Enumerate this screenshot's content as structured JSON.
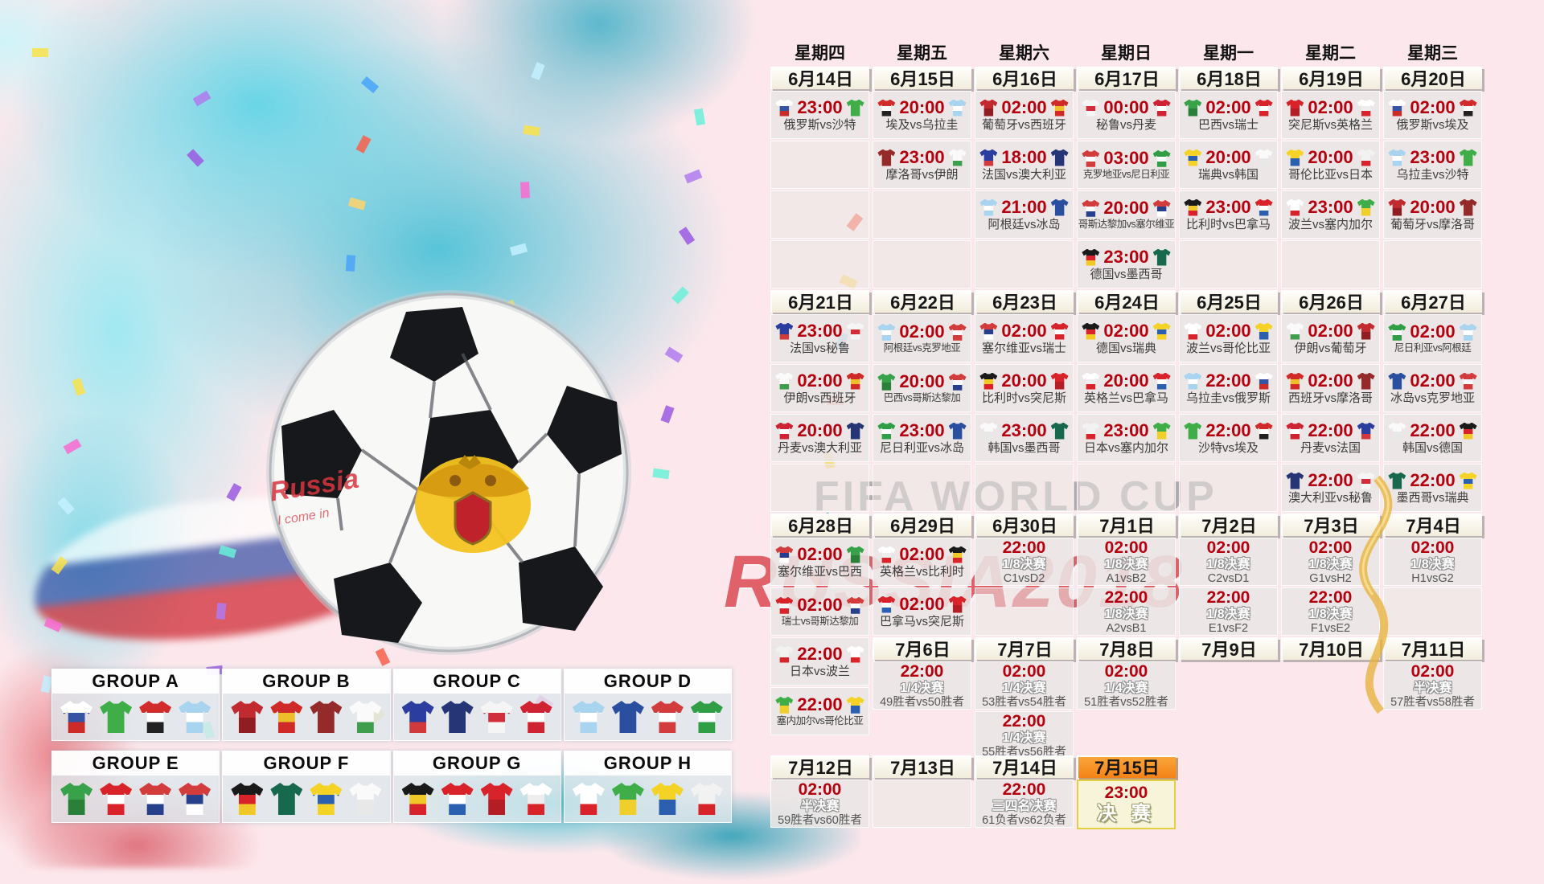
{
  "watermarks": {
    "fifa": "FIFA WORLD CUP",
    "russia": "RUSSIA2018",
    "graffiti1": "Russia",
    "graffiti2": "I come in"
  },
  "colors": {
    "background": "#fce8ec",
    "time_red": "#b5000f",
    "splash_teal": "#3abed5",
    "highlight_orange": "#f48216",
    "watermark_gray": "#aaa4a8",
    "watermark_red": "#d8353f"
  },
  "columns": [
    {
      "weekday": "星期四",
      "cells": [
        {
          "t": "date",
          "label": "6月14日"
        },
        {
          "t": "match",
          "time": "23:00",
          "home": "俄罗斯",
          "away": "沙特",
          "label": "俄罗斯vs沙特"
        },
        {
          "t": "empty"
        },
        {
          "t": "empty"
        },
        {
          "t": "empty"
        },
        {
          "t": "date",
          "label": "6月21日"
        },
        {
          "t": "match",
          "time": "23:00",
          "home": "法国",
          "away": "秘鲁",
          "label": "法国vs秘鲁"
        },
        {
          "t": "match",
          "time": "02:00",
          "home": "伊朗",
          "away": "西班牙",
          "label": "伊朗vs西班牙"
        },
        {
          "t": "match",
          "time": "20:00",
          "home": "丹麦",
          "away": "澳大利亚",
          "label": "丹麦vs澳大利亚"
        },
        {
          "t": "empty"
        },
        {
          "t": "date",
          "label": "6月28日"
        },
        {
          "t": "match",
          "time": "02:00",
          "home": "塞尔维亚",
          "away": "巴西",
          "label": "塞尔维亚vs巴西"
        },
        {
          "t": "match",
          "time": "02:00",
          "home": "瑞士",
          "away": "哥斯达黎加",
          "label": "瑞士vs哥斯达黎加"
        },
        {
          "t": "match",
          "time": "22:00",
          "home": "日本",
          "away": "波兰",
          "label": "日本vs波兰"
        },
        {
          "t": "match",
          "time": "22:00",
          "home": "塞内加尔",
          "away": "哥伦比亚",
          "label": "塞内加尔vs哥伦比亚"
        }
      ],
      "bottom": [
        {
          "t": "date",
          "label": "7月12日"
        },
        {
          "t": "ko",
          "time": "02:00",
          "stage": "半决赛",
          "detail": "59胜者vs60胜者"
        }
      ]
    },
    {
      "weekday": "星期五",
      "cells": [
        {
          "t": "date",
          "label": "6月15日"
        },
        {
          "t": "match",
          "time": "20:00",
          "home": "埃及",
          "away": "乌拉圭",
          "label": "埃及vs乌拉圭"
        },
        {
          "t": "match",
          "time": "23:00",
          "home": "摩洛哥",
          "away": "伊朗",
          "label": "摩洛哥vs伊朗"
        },
        {
          "t": "empty"
        },
        {
          "t": "empty"
        },
        {
          "t": "date",
          "label": "6月22日"
        },
        {
          "t": "match",
          "time": "02:00",
          "home": "阿根廷",
          "away": "克罗地亚",
          "label": "阿根廷vs克罗地亚"
        },
        {
          "t": "match",
          "time": "20:00",
          "home": "巴西",
          "away": "哥斯达黎加",
          "label": "巴西vs哥斯达黎加"
        },
        {
          "t": "match",
          "time": "23:00",
          "home": "尼日利亚",
          "away": "冰岛",
          "label": "尼日利亚vs冰岛"
        },
        {
          "t": "empty"
        },
        {
          "t": "date",
          "label": "6月29日"
        },
        {
          "t": "match",
          "time": "02:00",
          "home": "英格兰",
          "away": "比利时",
          "label": "英格兰vs比利时"
        },
        {
          "t": "match",
          "time": "02:00",
          "home": "巴拿马",
          "away": "突尼斯",
          "label": "巴拿马vs突尼斯"
        },
        {
          "t": "date",
          "label": "7月6日"
        },
        {
          "t": "ko",
          "time": "22:00",
          "stage": "1/4决赛",
          "detail": "49胜者vs50胜者"
        }
      ],
      "bottom": [
        {
          "t": "date",
          "label": "7月13日"
        },
        {
          "t": "empty"
        }
      ]
    },
    {
      "weekday": "星期六",
      "cells": [
        {
          "t": "date",
          "label": "6月16日"
        },
        {
          "t": "match",
          "time": "02:00",
          "home": "葡萄牙",
          "away": "西班牙",
          "label": "葡萄牙vs西班牙"
        },
        {
          "t": "match",
          "time": "18:00",
          "home": "法国",
          "away": "澳大利亚",
          "label": "法国vs澳大利亚"
        },
        {
          "t": "match",
          "time": "21:00",
          "home": "阿根廷",
          "away": "冰岛",
          "label": "阿根廷vs冰岛"
        },
        {
          "t": "empty"
        },
        {
          "t": "date",
          "label": "6月23日"
        },
        {
          "t": "match",
          "time": "02:00",
          "home": "塞尔维亚",
          "away": "瑞士",
          "label": "塞尔维亚vs瑞士"
        },
        {
          "t": "match",
          "time": "20:00",
          "home": "比利时",
          "away": "突尼斯",
          "label": "比利时vs突尼斯"
        },
        {
          "t": "match",
          "time": "23:00",
          "home": "韩国",
          "away": "墨西哥",
          "label": "韩国vs墨西哥"
        },
        {
          "t": "empty"
        },
        {
          "t": "date",
          "label": "6月30日"
        },
        {
          "t": "ko",
          "time": "22:00",
          "stage": "1/8决赛",
          "detail": "C1vsD2"
        },
        {
          "t": "empty"
        },
        {
          "t": "date",
          "label": "7月7日"
        },
        {
          "t": "ko",
          "time": "02:00",
          "stage": "1/4决赛",
          "detail": "53胜者vs54胜者"
        },
        {
          "t": "ko",
          "time": "22:00",
          "stage": "1/4决赛",
          "detail": "55胜者vs56胜者"
        }
      ],
      "bottom": [
        {
          "t": "date",
          "label": "7月14日"
        },
        {
          "t": "ko",
          "time": "22:00",
          "stage": "三四名决赛",
          "detail": "61负者vs62负者"
        }
      ]
    },
    {
      "weekday": "星期日",
      "cells": [
        {
          "t": "date",
          "label": "6月17日"
        },
        {
          "t": "match",
          "time": "00:00",
          "home": "秘鲁",
          "away": "丹麦",
          "label": "秘鲁vs丹麦"
        },
        {
          "t": "match",
          "time": "03:00",
          "home": "克罗地亚",
          "away": "尼日利亚",
          "label": "克罗地亚vs尼日利亚"
        },
        {
          "t": "match",
          "time": "20:00",
          "home": "哥斯达黎加",
          "away": "塞尔维亚",
          "label": "哥斯达黎加vs塞尔维亚"
        },
        {
          "t": "match",
          "time": "23:00",
          "home": "德国",
          "away": "墨西哥",
          "label": "德国vs墨西哥"
        },
        {
          "t": "date",
          "label": "6月24日"
        },
        {
          "t": "match",
          "time": "02:00",
          "home": "德国",
          "away": "瑞典",
          "label": "德国vs瑞典"
        },
        {
          "t": "match",
          "time": "20:00",
          "home": "英格兰",
          "away": "巴拿马",
          "label": "英格兰vs巴拿马"
        },
        {
          "t": "match",
          "time": "23:00",
          "home": "日本",
          "away": "塞内加尔",
          "label": "日本vs塞内加尔"
        },
        {
          "t": "empty"
        },
        {
          "t": "date",
          "label": "7月1日"
        },
        {
          "t": "ko",
          "time": "02:00",
          "stage": "1/8决赛",
          "detail": "A1vsB2"
        },
        {
          "t": "ko",
          "time": "22:00",
          "stage": "1/8决赛",
          "detail": "A2vsB1"
        },
        {
          "t": "date",
          "label": "7月8日"
        },
        {
          "t": "ko",
          "time": "02:00",
          "stage": "1/4决赛",
          "detail": "51胜者vs52胜者"
        }
      ],
      "bottom": [
        {
          "t": "date",
          "label": "7月15日",
          "highlight": true
        },
        {
          "t": "final",
          "time": "23:00",
          "label": "决 赛"
        }
      ]
    },
    {
      "weekday": "星期一",
      "cells": [
        {
          "t": "date",
          "label": "6月18日"
        },
        {
          "t": "match",
          "time": "02:00",
          "home": "巴西",
          "away": "瑞士",
          "label": "巴西vs瑞士"
        },
        {
          "t": "match",
          "time": "20:00",
          "home": "瑞典",
          "away": "韩国",
          "label": "瑞典vs韩国"
        },
        {
          "t": "match",
          "time": "23:00",
          "home": "比利时",
          "away": "巴拿马",
          "label": "比利时vs巴拿马"
        },
        {
          "t": "empty"
        },
        {
          "t": "date",
          "label": "6月25日"
        },
        {
          "t": "match",
          "time": "02:00",
          "home": "波兰",
          "away": "哥伦比亚",
          "label": "波兰vs哥伦比亚"
        },
        {
          "t": "match",
          "time": "22:00",
          "home": "乌拉圭",
          "away": "俄罗斯",
          "label": "乌拉圭vs俄罗斯"
        },
        {
          "t": "match",
          "time": "22:00",
          "home": "沙特",
          "away": "埃及",
          "label": "沙特vs埃及"
        },
        {
          "t": "empty"
        },
        {
          "t": "date",
          "label": "7月2日"
        },
        {
          "t": "ko",
          "time": "02:00",
          "stage": "1/8决赛",
          "detail": "C2vsD1"
        },
        {
          "t": "ko",
          "time": "22:00",
          "stage": "1/8决赛",
          "detail": "E1vsF2"
        },
        {
          "t": "date",
          "label": "7月9日"
        }
      ]
    },
    {
      "weekday": "星期二",
      "cells": [
        {
          "t": "date",
          "label": "6月19日"
        },
        {
          "t": "match",
          "time": "02:00",
          "home": "突尼斯",
          "away": "英格兰",
          "label": "突尼斯vs英格兰"
        },
        {
          "t": "match",
          "time": "20:00",
          "home": "哥伦比亚",
          "away": "日本",
          "label": "哥伦比亚vs日本"
        },
        {
          "t": "match",
          "time": "23:00",
          "home": "波兰",
          "away": "塞内加尔",
          "label": "波兰vs塞内加尔"
        },
        {
          "t": "empty"
        },
        {
          "t": "date",
          "label": "6月26日"
        },
        {
          "t": "match",
          "time": "02:00",
          "home": "伊朗",
          "away": "葡萄牙",
          "label": "伊朗vs葡萄牙"
        },
        {
          "t": "match",
          "time": "02:00",
          "home": "西班牙",
          "away": "摩洛哥",
          "label": "西班牙vs摩洛哥"
        },
        {
          "t": "match",
          "time": "22:00",
          "home": "丹麦",
          "away": "法国",
          "label": "丹麦vs法国"
        },
        {
          "t": "match",
          "time": "22:00",
          "home": "澳大利亚",
          "away": "秘鲁",
          "label": "澳大利亚vs秘鲁"
        },
        {
          "t": "date",
          "label": "7月3日"
        },
        {
          "t": "ko",
          "time": "02:00",
          "stage": "1/8决赛",
          "detail": "G1vsH2"
        },
        {
          "t": "ko",
          "time": "22:00",
          "stage": "1/8决赛",
          "detail": "F1vsE2"
        },
        {
          "t": "date",
          "label": "7月10日"
        }
      ]
    },
    {
      "weekday": "星期三",
      "cells": [
        {
          "t": "date",
          "label": "6月20日"
        },
        {
          "t": "match",
          "time": "02:00",
          "home": "俄罗斯",
          "away": "埃及",
          "label": "俄罗斯vs埃及"
        },
        {
          "t": "match",
          "time": "23:00",
          "home": "乌拉圭",
          "away": "沙特",
          "label": "乌拉圭vs沙特"
        },
        {
          "t": "match",
          "time": "20:00",
          "home": "葡萄牙",
          "away": "摩洛哥",
          "label": "葡萄牙vs摩洛哥"
        },
        {
          "t": "empty"
        },
        {
          "t": "date",
          "label": "6月27日"
        },
        {
          "t": "match",
          "time": "02:00",
          "home": "尼日利亚",
          "away": "阿根廷",
          "label": "尼日利亚vs阿根廷"
        },
        {
          "t": "match",
          "time": "02:00",
          "home": "冰岛",
          "away": "克罗地亚",
          "label": "冰岛vs克罗地亚"
        },
        {
          "t": "match",
          "time": "22:00",
          "home": "韩国",
          "away": "德国",
          "label": "韩国vs德国"
        },
        {
          "t": "match",
          "time": "22:00",
          "home": "墨西哥",
          "away": "瑞典",
          "label": "墨西哥vs瑞典"
        },
        {
          "t": "date",
          "label": "7月4日"
        },
        {
          "t": "ko",
          "time": "02:00",
          "stage": "1/8决赛",
          "detail": "H1vsG2"
        },
        {
          "t": "empty"
        },
        {
          "t": "date",
          "label": "7月11日"
        },
        {
          "t": "ko",
          "time": "02:00",
          "stage": "半决赛",
          "detail": "57胜者vs58胜者"
        }
      ]
    }
  ],
  "groups": [
    {
      "name": "GROUP A",
      "teams": [
        "俄罗斯",
        "沙特",
        "埃及",
        "乌拉圭"
      ]
    },
    {
      "name": "GROUP B",
      "teams": [
        "葡萄牙",
        "西班牙",
        "摩洛哥",
        "伊朗"
      ]
    },
    {
      "name": "GROUP C",
      "teams": [
        "法国",
        "澳大利亚",
        "秘鲁",
        "丹麦"
      ]
    },
    {
      "name": "GROUP D",
      "teams": [
        "阿根廷",
        "冰岛",
        "克罗地亚",
        "尼日利亚"
      ]
    },
    {
      "name": "GROUP E",
      "teams": [
        "巴西",
        "瑞士",
        "哥斯达黎加",
        "塞尔维亚"
      ]
    },
    {
      "name": "GROUP F",
      "teams": [
        "德国",
        "墨西哥",
        "瑞典",
        "韩国"
      ]
    },
    {
      "name": "GROUP G",
      "teams": [
        "比利时",
        "巴拿马",
        "突尼斯",
        "英格兰"
      ]
    },
    {
      "name": "GROUP H",
      "teams": [
        "波兰",
        "塞内加尔",
        "哥伦比亚",
        "日本"
      ]
    }
  ],
  "team_colors": {
    "俄罗斯": [
      "#ffffff",
      "#3653a4",
      "#cc2b28"
    ],
    "沙特": [
      "#3fae49"
    ],
    "埃及": [
      "#d22b2b",
      "#ffffff",
      "#222222"
    ],
    "乌拉圭": [
      "#a8d4f0",
      "#ffffff",
      "#a8d4f0"
    ],
    "葡萄牙": [
      "#c12a2e",
      "#8f1d22"
    ],
    "西班牙": [
      "#cf2a27",
      "#eebd2a",
      "#cf2a27"
    ],
    "摩洛哥": [
      "#952a2a"
    ],
    "伊朗": [
      "#fafafa",
      "#fafafa",
      "#3e9e4c"
    ],
    "法国": [
      "#2b3d9e",
      "#2b3d9e",
      "#d03a3a"
    ],
    "澳大利亚": [
      "#253575"
    ],
    "秘鲁": [
      "#f5f5f5",
      "#cf2e3a",
      "#f5f5f5"
    ],
    "丹麦": [
      "#cf2333",
      "#ffffff",
      "#cf2333"
    ],
    "阿根廷": [
      "#a8d4f0",
      "#ffffff",
      "#a8d4f0"
    ],
    "冰岛": [
      "#2b4fa0"
    ],
    "克罗地亚": [
      "#d23c3c",
      "#ffffff",
      "#d23c3c"
    ],
    "尼日利亚": [
      "#2f9e44",
      "#ffffff",
      "#2f9e44"
    ],
    "巴西": [
      "#37a24a",
      "#2a8039"
    ],
    "瑞士": [
      "#d8232a",
      "#ffffff",
      "#d8232a"
    ],
    "哥斯达黎加": [
      "#d23c3c",
      "#ffffff",
      "#27408b"
    ],
    "塞尔维亚": [
      "#d23c3c",
      "#27408b",
      "#ffffff"
    ],
    "德国": [
      "#1a1a1a",
      "#d8232a",
      "#f0c928"
    ],
    "墨西哥": [
      "#17694d"
    ],
    "瑞典": [
      "#f5d226",
      "#2b5fb0",
      "#f5d226"
    ],
    "韩国": [
      "#fafafa",
      "#e8e8e8"
    ],
    "比利时": [
      "#1a1a1a",
      "#f0c928",
      "#d8232a"
    ],
    "巴拿马": [
      "#d8232a",
      "#ffffff",
      "#2b5fb0"
    ],
    "突尼斯": [
      "#d8232a",
      "#b51d24"
    ],
    "英格兰": [
      "#ffffff",
      "#eeeeee",
      "#d8232a"
    ],
    "波兰": [
      "#ffffff",
      "#ffffff",
      "#d8232a"
    ],
    "塞内加尔": [
      "#3fae49",
      "#f0cf2a"
    ],
    "哥伦比亚": [
      "#f5d226",
      "#2b5fb0"
    ],
    "日本": [
      "#f2f2f2",
      "#f2f2f2",
      "#d8232a"
    ]
  }
}
